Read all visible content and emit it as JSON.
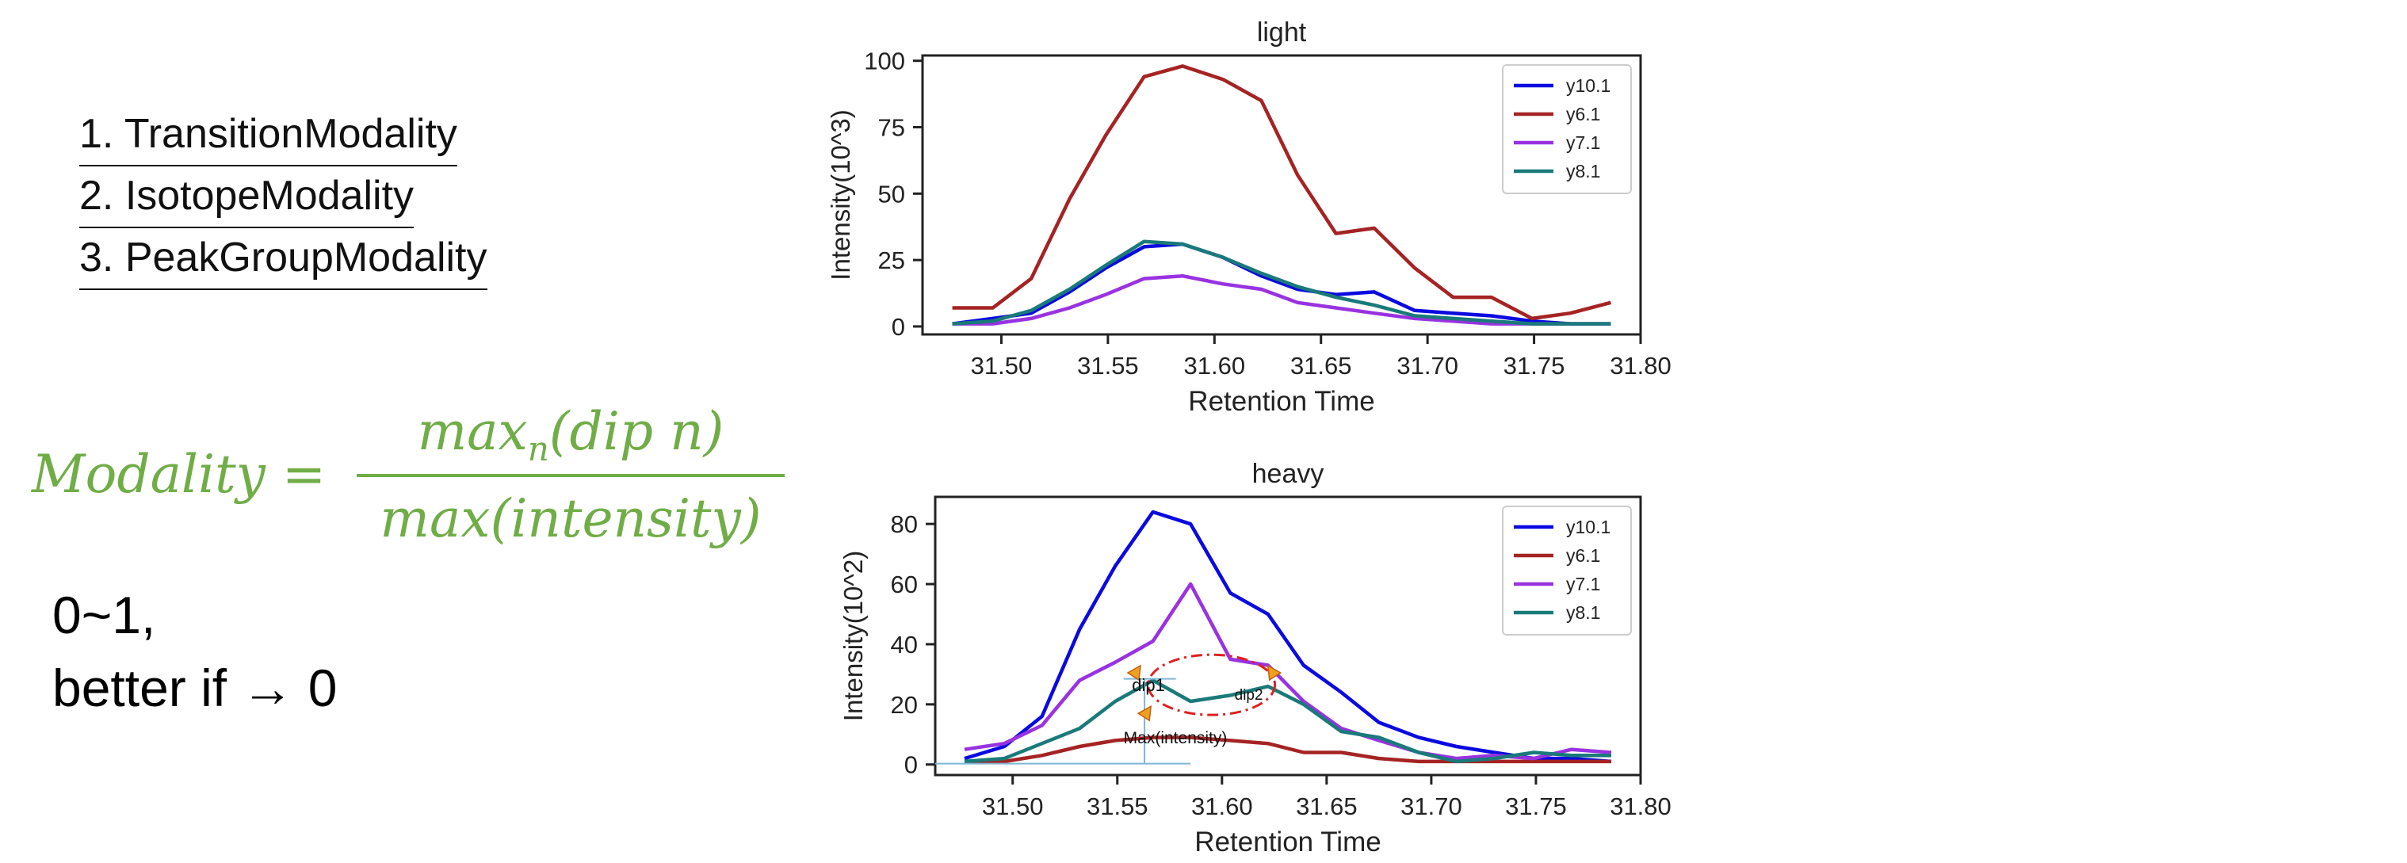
{
  "list": {
    "items": [
      "1. TransitionModality",
      "2. IsotopeModality",
      "3. PeakGroupModality"
    ]
  },
  "formula": {
    "lhs": "Modality =",
    "numerator_main": "max",
    "numerator_sub": "n",
    "numerator_rest": "(dip n)",
    "denominator": "max(intensity)",
    "color": "#70ad47"
  },
  "note": {
    "line1": "0~1,",
    "line2": "better if → 0"
  },
  "chart_data": [
    {
      "type": "line",
      "title": "light",
      "xlabel": "Retention Time",
      "ylabel": "Intensity(10^3)",
      "xlim": [
        31.463,
        31.8
      ],
      "ylim": [
        -3,
        102
      ],
      "xticks": [
        31.5,
        31.55,
        31.6,
        31.65,
        31.7,
        31.75,
        31.8
      ],
      "xtick_labels": [
        "31.50",
        "31.55",
        "31.60",
        "31.65",
        "31.70",
        "31.75",
        "31.80"
      ],
      "yticks": [
        0,
        25,
        50,
        75,
        100
      ],
      "ytick_labels": [
        "0",
        "25",
        "50",
        "75",
        "100"
      ],
      "legend_position": "top-right",
      "x": [
        31.477,
        31.496,
        31.514,
        31.532,
        31.549,
        31.567,
        31.585,
        31.604,
        31.622,
        31.639,
        31.657,
        31.675,
        31.694,
        31.712,
        31.73,
        31.749,
        31.767,
        31.786
      ],
      "series": [
        {
          "name": "y10.1",
          "color": "#0a0ae0",
          "values": [
            1,
            3,
            5,
            13,
            22,
            30,
            31,
            26,
            19,
            14,
            12,
            13,
            6,
            5,
            4,
            2,
            1,
            1
          ]
        },
        {
          "name": "y6.1",
          "color": "#a52323",
          "values": [
            7,
            7,
            18,
            48,
            72,
            94,
            98,
            93,
            85,
            57,
            35,
            37,
            22,
            11,
            11,
            3,
            5,
            9
          ]
        },
        {
          "name": "y7.1",
          "color": "#9932e0",
          "values": [
            1,
            1,
            3,
            7,
            12,
            18,
            19,
            16,
            14,
            9,
            7,
            5,
            3,
            2,
            1,
            1,
            1,
            1
          ]
        },
        {
          "name": "y8.1",
          "color": "#1a7a7a",
          "values": [
            1,
            2,
            6,
            14,
            23,
            32,
            31,
            26,
            20,
            15,
            11,
            8,
            4,
            3,
            2,
            1,
            1,
            1
          ]
        }
      ]
    },
    {
      "type": "line",
      "title": "heavy",
      "xlabel": "Retention Time",
      "ylabel": "Intensity(10^2)",
      "xlim": [
        31.463,
        31.8
      ],
      "ylim": [
        -3.5,
        89
      ],
      "xticks": [
        31.5,
        31.55,
        31.6,
        31.65,
        31.7,
        31.75,
        31.8
      ],
      "xtick_labels": [
        "31.50",
        "31.55",
        "31.60",
        "31.65",
        "31.70",
        "31.75",
        "31.80"
      ],
      "yticks": [
        0,
        20,
        40,
        60,
        80
      ],
      "ytick_labels": [
        "0",
        "20",
        "40",
        "60",
        "80"
      ],
      "legend_position": "top-right",
      "x": [
        31.477,
        31.496,
        31.514,
        31.532,
        31.549,
        31.567,
        31.585,
        31.604,
        31.622,
        31.639,
        31.657,
        31.675,
        31.694,
        31.712,
        31.73,
        31.749,
        31.767,
        31.786
      ],
      "series": [
        {
          "name": "y10.1",
          "color": "#0a0ae0",
          "values": [
            2,
            6,
            16,
            45,
            66,
            84,
            80,
            57,
            50,
            33,
            24,
            14,
            9,
            6,
            4,
            2,
            2,
            1
          ]
        },
        {
          "name": "y6.1",
          "color": "#a52323",
          "values": [
            1,
            1,
            3,
            6,
            8,
            9,
            9,
            8,
            7,
            4,
            4,
            2,
            1,
            1,
            1,
            1,
            1,
            1
          ]
        },
        {
          "name": "y7.1",
          "color": "#9932e0",
          "values": [
            5,
            7,
            13,
            28,
            34,
            41,
            60,
            35,
            33,
            21,
            12,
            8,
            4,
            2,
            3,
            2,
            5,
            4
          ]
        },
        {
          "name": "y8.1",
          "color": "#1a7a7a",
          "values": [
            1,
            2,
            7,
            12,
            21,
            28,
            21,
            23,
            26,
            20,
            11,
            9,
            4,
            1,
            2,
            4,
            3,
            3
          ]
        }
      ],
      "annotations": {
        "dip1": "dip1",
        "dip2": "dip2",
        "max": "Max(intensity)"
      }
    }
  ]
}
